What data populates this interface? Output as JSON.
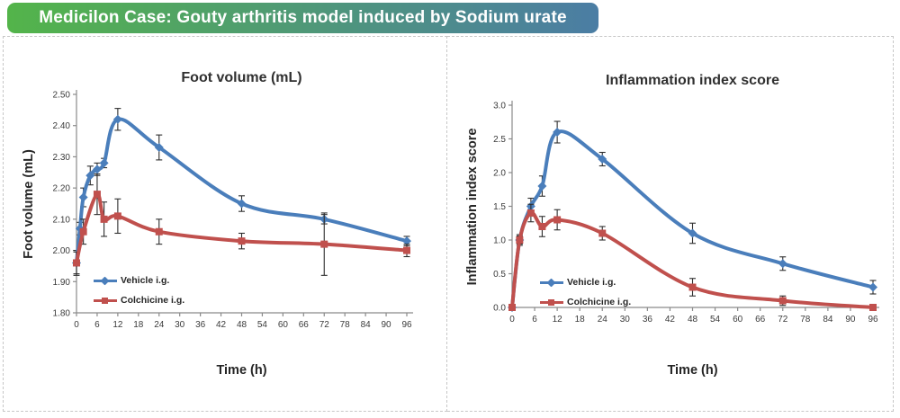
{
  "header": {
    "title": "Medicilon Case: Gouty arthritis model induced by Sodium urate",
    "gradient_left": "#53b44a",
    "gradient_right": "#4b7da4",
    "text_color": "#ffffff"
  },
  "chart_data": [
    {
      "type": "line",
      "title": "Foot volume (mL)",
      "xlabel": "Time (h)",
      "ylabel": "Foot volume (mL)",
      "xlim": [
        0,
        96
      ],
      "xticks": [
        0,
        6,
        12,
        18,
        24,
        30,
        36,
        42,
        48,
        54,
        60,
        66,
        72,
        78,
        84,
        90,
        96
      ],
      "ylim": [
        1.8,
        2.5
      ],
      "ytick_values": [
        1.8,
        1.9,
        2.0,
        2.1,
        2.2,
        2.3,
        2.4,
        2.5
      ],
      "ytick_labels": [
        "1.80",
        "1.90",
        "2.00",
        "2.10",
        "2.20",
        "2.30",
        "2.40",
        "2.50"
      ],
      "grid": false,
      "legend_position": "inside-bottom-left",
      "error_bars": true,
      "series": [
        {
          "name": "Vehicle i.g.",
          "color": "#4a7ebb",
          "marker": "diamond",
          "x": [
            0,
            1,
            2,
            4,
            6,
            8,
            12,
            24,
            48,
            72,
            96
          ],
          "y": [
            1.96,
            2.07,
            2.17,
            2.24,
            2.26,
            2.28,
            2.42,
            2.33,
            2.15,
            2.1,
            2.03
          ],
          "err": [
            0.04,
            0.02,
            0.03,
            0.03,
            0.02,
            0.015,
            0.035,
            0.04,
            0.025,
            0.015,
            0.015
          ]
        },
        {
          "name": "Colchicine i.g.",
          "color": "#c0504d",
          "marker": "square",
          "x": [
            0,
            2,
            6,
            8,
            12,
            24,
            48,
            72,
            96
          ],
          "y": [
            1.96,
            2.06,
            2.18,
            2.1,
            2.11,
            2.06,
            2.03,
            2.02,
            2.0
          ],
          "err": [
            0.035,
            0.04,
            0.065,
            0.055,
            0.055,
            0.04,
            0.025,
            0.1,
            0.02
          ]
        }
      ]
    },
    {
      "type": "line",
      "title": "Inflammation index score",
      "xlabel": "Time (h)",
      "ylabel": "Inflammation index score",
      "xlim": [
        0,
        96
      ],
      "xticks": [
        0,
        6,
        12,
        18,
        24,
        30,
        36,
        42,
        48,
        54,
        60,
        66,
        72,
        78,
        84,
        90,
        96
      ],
      "ylim": [
        0.0,
        3.0
      ],
      "ytick_values": [
        0.0,
        0.5,
        1.0,
        1.5,
        2.0,
        2.5,
        3.0
      ],
      "ytick_labels": [
        "0.0",
        "0.5",
        "1.0",
        "1.5",
        "2.0",
        "2.5",
        "3.0"
      ],
      "grid": false,
      "legend_position": "inside-bottom-left",
      "error_bars": true,
      "series": [
        {
          "name": "Vehicle i.g.",
          "color": "#4a7ebb",
          "marker": "diamond",
          "x": [
            0,
            2,
            5,
            8,
            12,
            24,
            48,
            72,
            96
          ],
          "y": [
            0.0,
            1.0,
            1.5,
            1.8,
            2.6,
            2.2,
            1.1,
            0.65,
            0.3
          ],
          "err": [
            0,
            0.08,
            0.12,
            0.15,
            0.16,
            0.1,
            0.15,
            0.1,
            0.1
          ]
        },
        {
          "name": "Colchicine i.g.",
          "color": "#c0504d",
          "marker": "square",
          "x": [
            0,
            2,
            5,
            8,
            12,
            24,
            48,
            72,
            96
          ],
          "y": [
            0.0,
            1.0,
            1.4,
            1.2,
            1.3,
            1.1,
            0.3,
            0.1,
            0.0
          ],
          "err": [
            0,
            0.06,
            0.13,
            0.15,
            0.15,
            0.1,
            0.13,
            0.07,
            0
          ]
        }
      ]
    }
  ]
}
